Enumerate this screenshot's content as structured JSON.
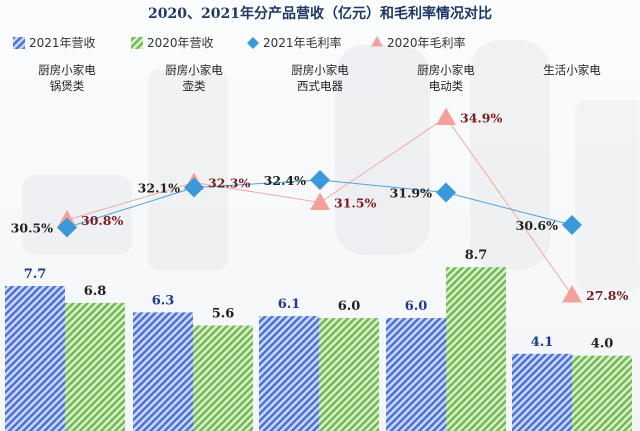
{
  "chart_data": {
    "type": "bar",
    "title": "2020、2021年分产品营收（亿元）和毛利率情况对比",
    "categories": [
      [
        "厨房小家电",
        "锅煲类"
      ],
      [
        "厨房小家电",
        "壶类"
      ],
      [
        "厨房小家电",
        "西式电器"
      ],
      [
        "厨房小家电",
        "电动类"
      ],
      [
        "生活小家电"
      ]
    ],
    "bar_series": [
      {
        "name": "2021年营收",
        "values": [
          7.7,
          6.3,
          6.1,
          6.0,
          4.1
        ],
        "color": "#4a6fd3"
      },
      {
        "name": "2020年营收",
        "values": [
          6.8,
          5.6,
          6.0,
          8.7,
          4.0
        ],
        "color": "#6fb84d"
      }
    ],
    "line_series": [
      {
        "name": "2021年毛利率",
        "values": [
          30.5,
          32.1,
          32.4,
          31.9,
          30.6
        ],
        "labels": [
          "30.5%",
          "32.1%",
          "32.4%",
          "31.9%",
          "30.6%"
        ],
        "color": "#3a9ad9",
        "marker": "diamond"
      },
      {
        "name": "2020年毛利率",
        "values": [
          30.8,
          32.3,
          31.5,
          34.9,
          27.8
        ],
        "labels": [
          "30.8%",
          "32.3%",
          "31.5%",
          "34.9%",
          "27.8%"
        ],
        "color": "#f4a09c",
        "marker": "triangle"
      }
    ],
    "bar_value_colors": [
      "#1f3a8a",
      "#222222"
    ],
    "line_value_colors": [
      "#222222",
      "#7a1f1f"
    ],
    "legend_position": "top",
    "grid": false
  }
}
